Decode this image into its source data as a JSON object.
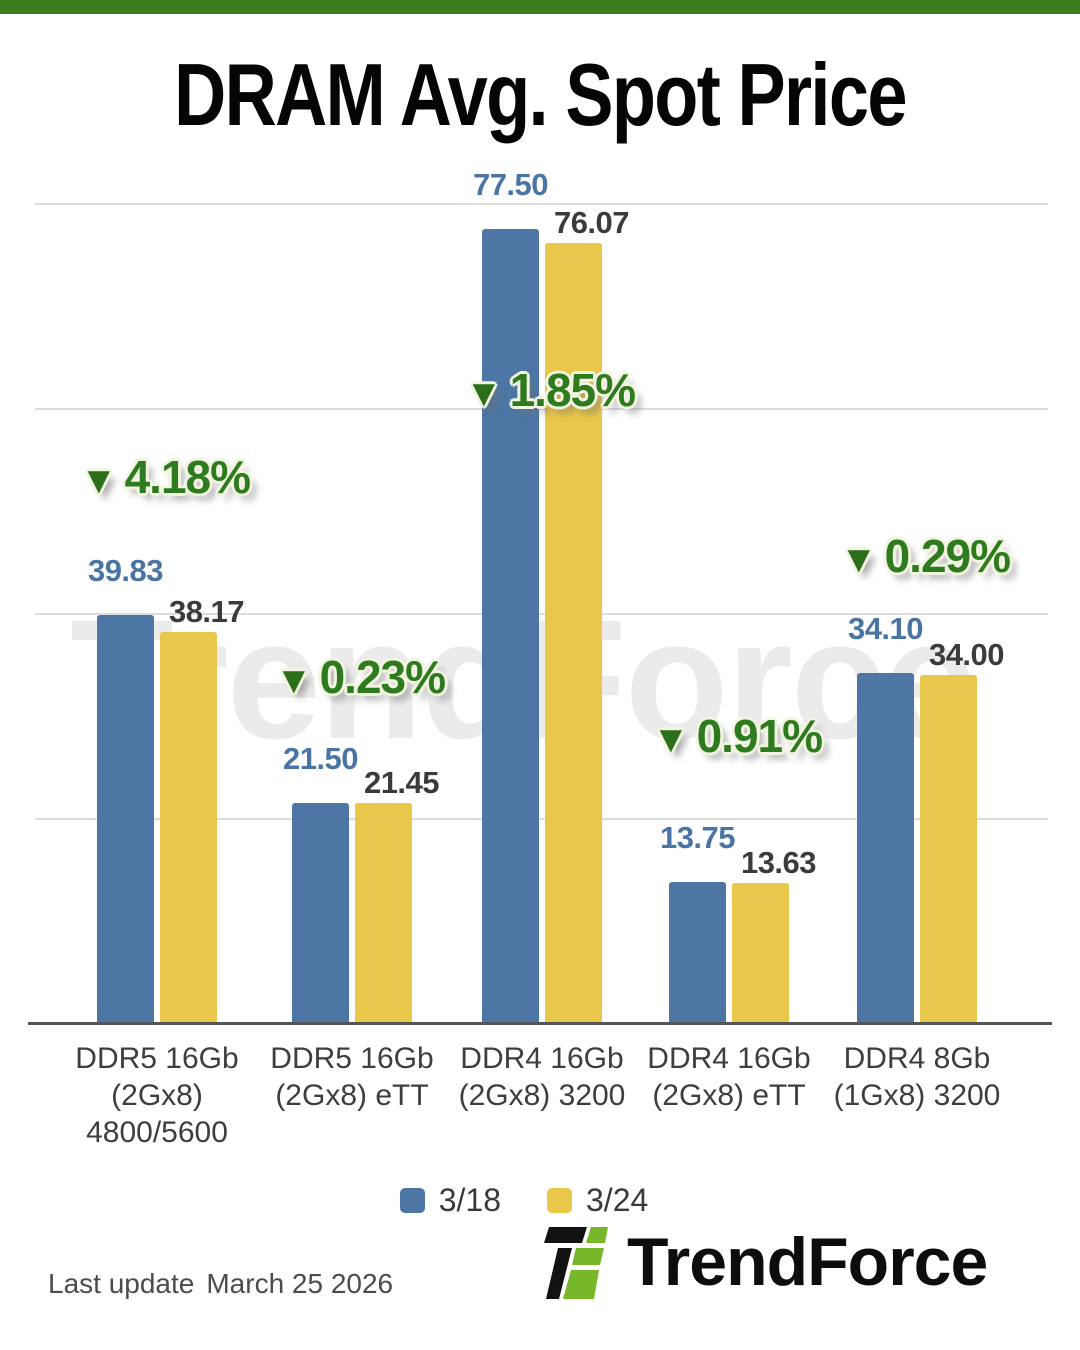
{
  "page": {
    "topbar_color": "#3d7b21",
    "background": "#ffffff"
  },
  "header": {
    "title": "DRAM Avg. Spot Price"
  },
  "watermark": {
    "text": "TrendForce",
    "color": "#ebebeb"
  },
  "chart_data": {
    "type": "bar",
    "title": "DRAM Avg. Spot Price",
    "categories": [
      "DDR5 16Gb (2Gx8) 4800/5600",
      "DDR5 16Gb (2Gx8) eTT",
      "DDR4 16Gb (2Gx8) 3200",
      "DDR4 16Gb (2Gx8) eTT",
      "DDR4 8Gb (1Gx8) 3200"
    ],
    "category_lines": [
      [
        "DDR5 16Gb",
        "(2Gx8)",
        "4800/5600"
      ],
      [
        "DDR5 16Gb",
        "(2Gx8) eTT"
      ],
      [
        "DDR4 16Gb",
        "(2Gx8) 3200"
      ],
      [
        "DDR4 16Gb",
        "(2Gx8) eTT"
      ],
      [
        "DDR4 8Gb",
        "(1Gx8) 3200"
      ]
    ],
    "series": [
      {
        "name": "3/18",
        "color": "#4d76a4",
        "label_color": "#4a74a4",
        "values": [
          39.83,
          21.5,
          77.5,
          13.75,
          34.1
        ]
      },
      {
        "name": "3/24",
        "color": "#e9c74b",
        "label_color": "#3b3b3b",
        "values": [
          38.17,
          21.45,
          76.07,
          13.63,
          34.0
        ]
      }
    ],
    "percent_changes": [
      {
        "direction": "down",
        "label": "4.18%"
      },
      {
        "direction": "down",
        "label": "0.23%"
      },
      {
        "direction": "down",
        "label": "1.85%"
      },
      {
        "direction": "down",
        "label": "0.91%"
      },
      {
        "direction": "down",
        "label": "0.29%"
      }
    ],
    "percent_color": "#2e7a1e",
    "triangle_color": "#2c6f1b",
    "ylim": [
      0,
      80
    ],
    "gridline_values": [
      20,
      40,
      60,
      80
    ],
    "grid": "on",
    "legend_position": "bottom"
  },
  "legend": {
    "items": [
      {
        "label": "3/18",
        "color": "#4d76a4"
      },
      {
        "label": "3/24",
        "color": "#e9c74b"
      }
    ]
  },
  "footer": {
    "label": "Last update",
    "date": "March 25 2026"
  },
  "logo": {
    "text": "TrendForce",
    "green": "#76b82a",
    "black": "#121212"
  }
}
